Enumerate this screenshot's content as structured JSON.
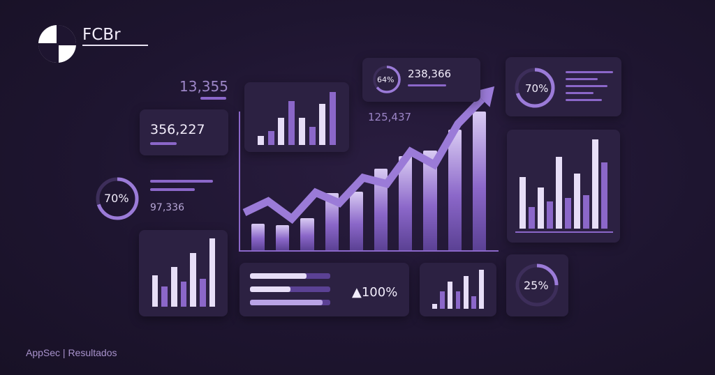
{
  "brand": {
    "name": "FCBr"
  },
  "footer": {
    "text": "AppSec | Resultados"
  },
  "stats": {
    "s1": "13,355",
    "s2": "356,227",
    "s3": "97,336",
    "s4": "238,366",
    "s5": "125,437"
  },
  "donuts": {
    "d_left": {
      "label": "70%",
      "value": 70
    },
    "d_top_small": {
      "label": "64%",
      "value": 64
    },
    "d_top_right": {
      "label": "70%",
      "value": 70
    },
    "d_bottom_right": {
      "label": "25%",
      "value": 25
    }
  },
  "progress": {
    "label": "▲100%",
    "bars": [
      0.7,
      0.5,
      0.9
    ]
  },
  "colors": {
    "accent": "#9b7bd8",
    "light": "#e7def7",
    "mid": "#8b67c9",
    "dark": "#5b4194",
    "card": "#2c2142"
  },
  "chart_data": [
    {
      "type": "bar",
      "id": "main",
      "values": [
        1.5,
        1.4,
        1.8,
        3.2,
        3.3,
        4.6,
        5.3,
        5.6,
        6.8,
        7.8
      ],
      "line_values": [
        4.0,
        5.3,
        3.3,
        6.3,
        5.1,
        8.0,
        7.3,
        11.0,
        9.5,
        14.2,
        17.0
      ]
    },
    {
      "type": "bar",
      "id": "top_center",
      "values": [
        1.0,
        1.5,
        3.0,
        4.8,
        3.0,
        2.0,
        4.5,
        5.8
      ]
    },
    {
      "type": "bar",
      "id": "right_large",
      "values": [
        5.4,
        2.3,
        4.3,
        2.9,
        7.6,
        3.2,
        5.8,
        3.5,
        9.4,
        7.0
      ]
    },
    {
      "type": "bar",
      "id": "bottom_left",
      "values": [
        3.6,
        2.3,
        4.6,
        2.9,
        6.2,
        3.2,
        7.9
      ]
    },
    {
      "type": "bar",
      "id": "bottom_center",
      "values": [
        1.0,
        3.5,
        5.3,
        3.5,
        6.5,
        2.5,
        7.7
      ]
    }
  ]
}
